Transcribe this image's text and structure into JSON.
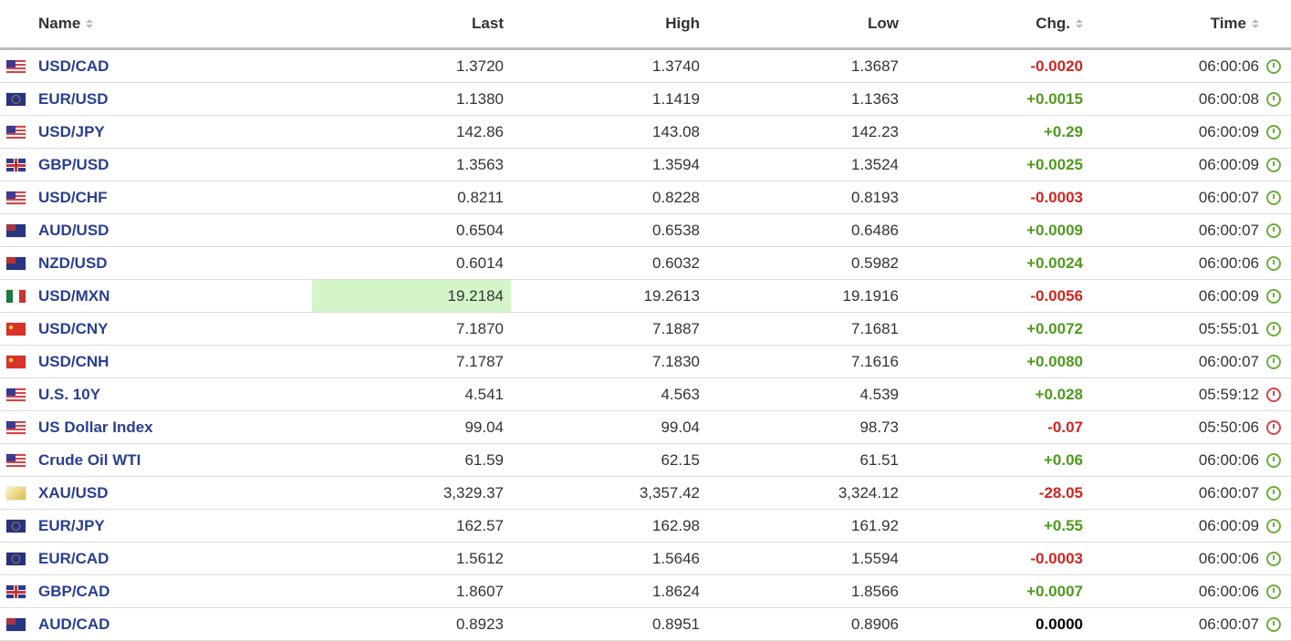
{
  "headers": {
    "name": "Name",
    "last": "Last",
    "high": "High",
    "low": "Low",
    "chg": "Chg.",
    "time": "Time"
  },
  "colors": {
    "name": "#2a3f91",
    "up": "#4e9a1c",
    "down": "#d5231e",
    "highlight": "#d4f5c8"
  },
  "rows": [
    {
      "flag": "us",
      "name": "USD/CAD",
      "last": "1.3720",
      "high": "1.3740",
      "low": "1.3687",
      "chg": "-0.0020",
      "dir": "down",
      "time": "06:00:06",
      "clock": "green"
    },
    {
      "flag": "eu",
      "name": "EUR/USD",
      "last": "1.1380",
      "high": "1.1419",
      "low": "1.1363",
      "chg": "+0.0015",
      "dir": "up",
      "time": "06:00:08",
      "clock": "green"
    },
    {
      "flag": "us",
      "name": "USD/JPY",
      "last": "142.86",
      "high": "143.08",
      "low": "142.23",
      "chg": "+0.29",
      "dir": "up",
      "time": "06:00:09",
      "clock": "green"
    },
    {
      "flag": "gb",
      "name": "GBP/USD",
      "last": "1.3563",
      "high": "1.3594",
      "low": "1.3524",
      "chg": "+0.0025",
      "dir": "up",
      "time": "06:00:09",
      "clock": "green"
    },
    {
      "flag": "us",
      "name": "USD/CHF",
      "last": "0.8211",
      "high": "0.8228",
      "low": "0.8193",
      "chg": "-0.0003",
      "dir": "down",
      "time": "06:00:07",
      "clock": "green"
    },
    {
      "flag": "au",
      "name": "AUD/USD",
      "last": "0.6504",
      "high": "0.6538",
      "low": "0.6486",
      "chg": "+0.0009",
      "dir": "up",
      "time": "06:00:07",
      "clock": "green"
    },
    {
      "flag": "nz",
      "name": "NZD/USD",
      "last": "0.6014",
      "high": "0.6032",
      "low": "0.5982",
      "chg": "+0.0024",
      "dir": "up",
      "time": "06:00:06",
      "clock": "green"
    },
    {
      "flag": "mx",
      "name": "USD/MXN",
      "last": "19.2184",
      "high": "19.2613",
      "low": "19.1916",
      "chg": "-0.0056",
      "dir": "down",
      "time": "06:00:09",
      "clock": "green",
      "highlight": true
    },
    {
      "flag": "cn",
      "name": "USD/CNY",
      "last": "7.1870",
      "high": "7.1887",
      "low": "7.1681",
      "chg": "+0.0072",
      "dir": "up",
      "time": "05:55:01",
      "clock": "green"
    },
    {
      "flag": "cn",
      "name": "USD/CNH",
      "last": "7.1787",
      "high": "7.1830",
      "low": "7.1616",
      "chg": "+0.0080",
      "dir": "up",
      "time": "06:00:07",
      "clock": "green"
    },
    {
      "flag": "us",
      "name": "U.S. 10Y",
      "last": "4.541",
      "high": "4.563",
      "low": "4.539",
      "chg": "+0.028",
      "dir": "up",
      "time": "05:59:12",
      "clock": "red"
    },
    {
      "flag": "us",
      "name": "US Dollar Index",
      "last": "99.04",
      "high": "99.04",
      "low": "98.73",
      "chg": "-0.07",
      "dir": "down",
      "time": "05:50:06",
      "clock": "red"
    },
    {
      "flag": "us",
      "name": "Crude Oil WTI",
      "last": "61.59",
      "high": "62.15",
      "low": "61.51",
      "chg": "+0.06",
      "dir": "up",
      "time": "06:00:06",
      "clock": "green"
    },
    {
      "flag": "gold",
      "name": "XAU/USD",
      "last": "3,329.37",
      "high": "3,357.42",
      "low": "3,324.12",
      "chg": "-28.05",
      "dir": "down",
      "time": "06:00:07",
      "clock": "green"
    },
    {
      "flag": "eu",
      "name": "EUR/JPY",
      "last": "162.57",
      "high": "162.98",
      "low": "161.92",
      "chg": "+0.55",
      "dir": "up",
      "time": "06:00:09",
      "clock": "green"
    },
    {
      "flag": "eu",
      "name": "EUR/CAD",
      "last": "1.5612",
      "high": "1.5646",
      "low": "1.5594",
      "chg": "-0.0003",
      "dir": "down",
      "time": "06:00:06",
      "clock": "green"
    },
    {
      "flag": "gb",
      "name": "GBP/CAD",
      "last": "1.8607",
      "high": "1.8624",
      "low": "1.8566",
      "chg": "+0.0007",
      "dir": "up",
      "time": "06:00:06",
      "clock": "green"
    },
    {
      "flag": "au",
      "name": "AUD/CAD",
      "last": "0.8923",
      "high": "0.8951",
      "low": "0.8906",
      "chg": "0.0000",
      "dir": "flat",
      "time": "06:00:07",
      "clock": "green"
    }
  ]
}
